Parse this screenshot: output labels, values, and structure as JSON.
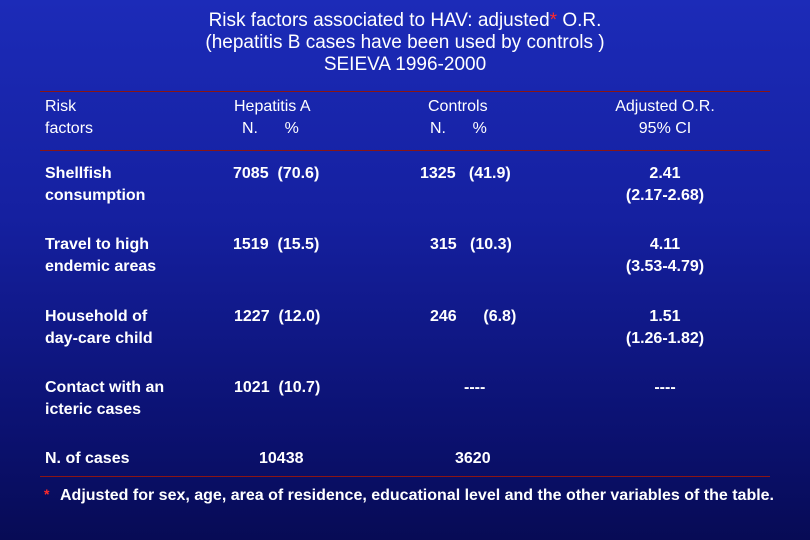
{
  "title": {
    "line1_pre": "Risk factors associated to HAV: adjusted",
    "line1_star": "*",
    "line1_post": " O.R.",
    "line2": "(hepatitis B cases have been used by controls )",
    "line3": "SEIEVA 1996-2000"
  },
  "header": {
    "risk_1": "Risk",
    "risk_2": "factors",
    "hep_1": "Hepatitis A",
    "hep_2": "N.      %",
    "ctrl_1": "Controls",
    "ctrl_2": "N.      %",
    "or_1": "Adjusted O.R.",
    "or_2": "95% CI"
  },
  "rows": [
    {
      "factor_1": "Shellfish",
      "factor_2": "consumption",
      "hep": "7085  (70.6)",
      "ctrl": "1325   (41.9)",
      "or_1": "2.41",
      "or_2": "(2.17-2.68)"
    },
    {
      "factor_1": "Travel to high",
      "factor_2": "endemic areas",
      "hep": "1519  (15.5)",
      "ctrl": "315   (10.3)",
      "or_1": "4.11",
      "or_2": "(3.53-4.79)"
    },
    {
      "factor_1": "Household of",
      "factor_2": "day-care child",
      "hep": "1227  (12.0)",
      "ctrl": "246      (6.8)",
      "or_1": "1.51",
      "or_2": "(1.26-1.82)"
    },
    {
      "factor_1": "Contact with an",
      "factor_2": "icteric cases",
      "hep": "1021  (10.7)",
      "ctrl": "----",
      "or_1": "----",
      "or_2": ""
    }
  ],
  "totals": {
    "label": "N. of cases",
    "hep": "10438",
    "ctrl": "3620"
  },
  "footnote": {
    "star": "*",
    "text": "Adjusted for sex, age, area of residence, educational level and the other variables of the table."
  },
  "colors": {
    "background": "#1520a0",
    "accent_red": "#ff2a2a",
    "rule": "#8a1515",
    "text": "#ffffff"
  }
}
